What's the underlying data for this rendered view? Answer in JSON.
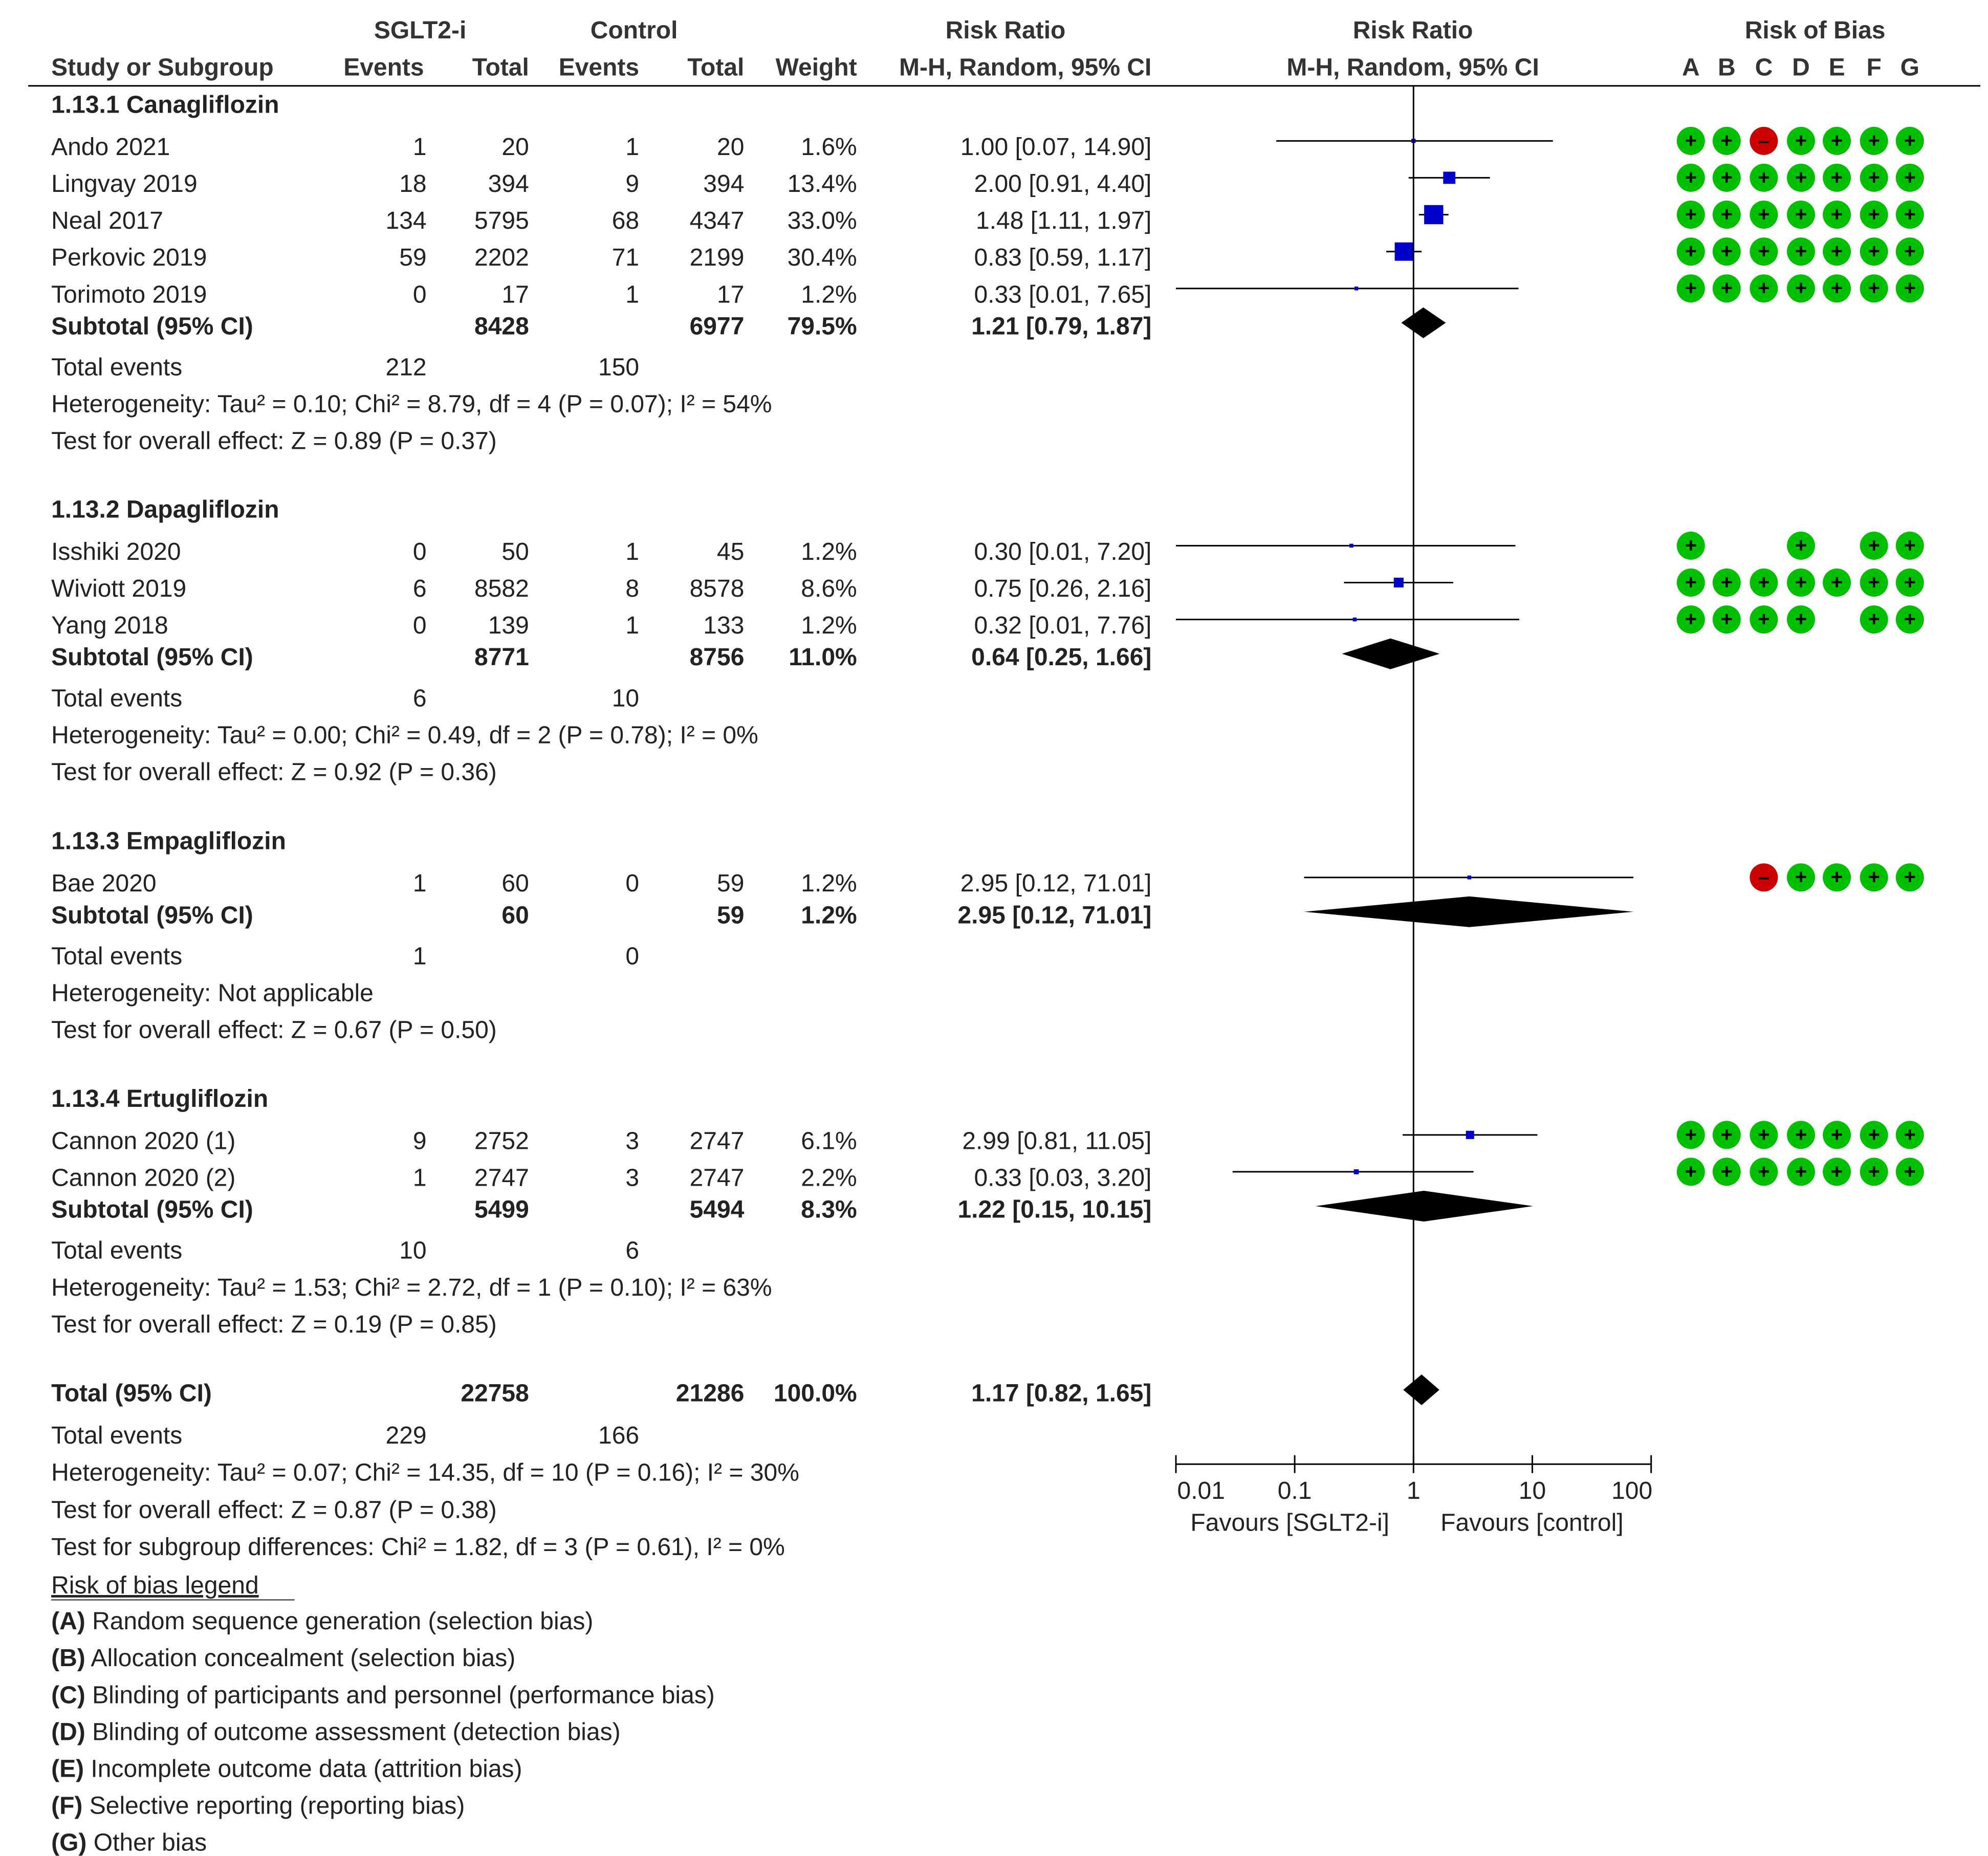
{
  "chart_data": {
    "type": "forest",
    "headers": {
      "group_sglt": "SGLT2-i",
      "group_control": "Control",
      "rr_title": "Risk Ratio",
      "plot_title": "Risk Ratio",
      "rob_title": "Risk of Bias",
      "study": "Study or Subgroup",
      "events": "Events",
      "total": "Total",
      "weight": "Weight",
      "method": "M-H, Random, 95% CI",
      "plot_method": "M-H, Random, 95% CI",
      "rob_letters": [
        "A",
        "B",
        "C",
        "D",
        "E",
        "F",
        "G"
      ]
    },
    "subgroups": [
      {
        "title": "1.13.1 Canagliflozin",
        "studies": [
          {
            "name": "Ando 2021",
            "e1": "1",
            "t1": "20",
            "e2": "1",
            "t2": "20",
            "weight": "1.6%",
            "ci": "1.00 [0.07, 14.90]",
            "rr": 1.0,
            "lo": 0.07,
            "hi": 14.9,
            "w": 1.6,
            "rob": [
              "+",
              "+",
              "-",
              "+",
              "+",
              "+",
              "+"
            ]
          },
          {
            "name": "Lingvay 2019",
            "e1": "18",
            "t1": "394",
            "e2": "9",
            "t2": "394",
            "weight": "13.4%",
            "ci": "2.00 [0.91, 4.40]",
            "rr": 2.0,
            "lo": 0.91,
            "hi": 4.4,
            "w": 13.4,
            "rob": [
              "+",
              "+",
              "+",
              "+",
              "+",
              "+",
              "+"
            ]
          },
          {
            "name": "Neal 2017",
            "e1": "134",
            "t1": "5795",
            "e2": "68",
            "t2": "4347",
            "weight": "33.0%",
            "ci": "1.48 [1.11, 1.97]",
            "rr": 1.48,
            "lo": 1.11,
            "hi": 1.97,
            "w": 33.0,
            "rob": [
              "+",
              "+",
              "+",
              "+",
              "+",
              "+",
              "+"
            ]
          },
          {
            "name": "Perkovic 2019",
            "e1": "59",
            "t1": "2202",
            "e2": "71",
            "t2": "2199",
            "weight": "30.4%",
            "ci": "0.83 [0.59, 1.17]",
            "rr": 0.83,
            "lo": 0.59,
            "hi": 1.17,
            "w": 30.4,
            "rob": [
              "+",
              "+",
              "+",
              "+",
              "+",
              "+",
              "+"
            ]
          },
          {
            "name": "Torimoto 2019",
            "e1": "0",
            "t1": "17",
            "e2": "1",
            "t2": "17",
            "weight": "1.2%",
            "ci": "0.33 [0.01, 7.65]",
            "rr": 0.33,
            "lo": 0.01,
            "hi": 7.65,
            "w": 1.2,
            "rob": [
              "+",
              "+",
              "+",
              "+",
              "+",
              "+",
              "+"
            ]
          }
        ],
        "subtotal": {
          "label": "Subtotal (95% CI)",
          "t1": "8428",
          "t2": "6977",
          "weight": "79.5%",
          "ci": "1.21 [0.79, 1.87]",
          "rr": 1.21,
          "lo": 0.79,
          "hi": 1.87
        },
        "total_events": {
          "label": "Total events",
          "e1": "212",
          "e2": "150"
        },
        "heterogeneity": "Heterogeneity: Tau² = 0.10; Chi² = 8.79, df = 4 (P = 0.07); I² = 54%",
        "overall": "Test for overall effect: Z = 0.89 (P = 0.37)"
      },
      {
        "title": "1.13.2 Dapagliflozin",
        "studies": [
          {
            "name": "Isshiki 2020",
            "e1": "0",
            "t1": "50",
            "e2": "1",
            "t2": "45",
            "weight": "1.2%",
            "ci": "0.30 [0.01, 7.20]",
            "rr": 0.3,
            "lo": 0.01,
            "hi": 7.2,
            "w": 1.2,
            "rob": [
              "+",
              "",
              "",
              "+",
              "",
              "+",
              "+"
            ]
          },
          {
            "name": "Wiviott 2019",
            "e1": "6",
            "t1": "8582",
            "e2": "8",
            "t2": "8578",
            "weight": "8.6%",
            "ci": "0.75 [0.26, 2.16]",
            "rr": 0.75,
            "lo": 0.26,
            "hi": 2.16,
            "w": 8.6,
            "rob": [
              "+",
              "+",
              "+",
              "+",
              "+",
              "+",
              "+"
            ]
          },
          {
            "name": "Yang 2018",
            "e1": "0",
            "t1": "139",
            "e2": "1",
            "t2": "133",
            "weight": "1.2%",
            "ci": "0.32 [0.01, 7.76]",
            "rr": 0.32,
            "lo": 0.01,
            "hi": 7.76,
            "w": 1.2,
            "rob": [
              "+",
              "+",
              "+",
              "+",
              "",
              "+",
              "+"
            ]
          }
        ],
        "subtotal": {
          "label": "Subtotal (95% CI)",
          "t1": "8771",
          "t2": "8756",
          "weight": "11.0%",
          "ci": "0.64 [0.25, 1.66]",
          "rr": 0.64,
          "lo": 0.25,
          "hi": 1.66
        },
        "total_events": {
          "label": "Total events",
          "e1": "6",
          "e2": "10"
        },
        "heterogeneity": "Heterogeneity: Tau² = 0.00; Chi² = 0.49, df = 2 (P = 0.78); I² = 0%",
        "overall": "Test for overall effect: Z = 0.92 (P = 0.36)"
      },
      {
        "title": "1.13.3 Empagliflozin",
        "studies": [
          {
            "name": "Bae 2020",
            "e1": "1",
            "t1": "60",
            "e2": "0",
            "t2": "59",
            "weight": "1.2%",
            "ci": "2.95 [0.12, 71.01]",
            "rr": 2.95,
            "lo": 0.12,
            "hi": 71.01,
            "w": 1.2,
            "rob": [
              "",
              "",
              "-",
              "+",
              "+",
              "+",
              "+"
            ]
          }
        ],
        "subtotal": {
          "label": "Subtotal (95% CI)",
          "t1": "60",
          "t2": "59",
          "weight": "1.2%",
          "ci": "2.95 [0.12, 71.01]",
          "rr": 2.95,
          "lo": 0.12,
          "hi": 71.01
        },
        "total_events": {
          "label": "Total events",
          "e1": "1",
          "e2": "0"
        },
        "heterogeneity": "Heterogeneity: Not applicable",
        "overall": "Test for overall effect: Z = 0.67 (P = 0.50)"
      },
      {
        "title": "1.13.4 Ertugliflozin",
        "studies": [
          {
            "name": "Cannon 2020 (1)",
            "e1": "9",
            "t1": "2752",
            "e2": "3",
            "t2": "2747",
            "weight": "6.1%",
            "ci": "2.99 [0.81, 11.05]",
            "rr": 2.99,
            "lo": 0.81,
            "hi": 11.05,
            "w": 6.1,
            "rob": [
              "+",
              "+",
              "+",
              "+",
              "+",
              "+",
              "+"
            ]
          },
          {
            "name": "Cannon 2020 (2)",
            "e1": "1",
            "t1": "2747",
            "e2": "3",
            "t2": "2747",
            "weight": "2.2%",
            "ci": "0.33 [0.03, 3.20]",
            "rr": 0.33,
            "lo": 0.03,
            "hi": 3.2,
            "w": 2.2,
            "rob": [
              "+",
              "+",
              "+",
              "+",
              "+",
              "+",
              "+"
            ]
          }
        ],
        "subtotal": {
          "label": "Subtotal (95% CI)",
          "t1": "5499",
          "t2": "5494",
          "weight": "8.3%",
          "ci": "1.22 [0.15, 10.15]",
          "rr": 1.22,
          "lo": 0.15,
          "hi": 10.15
        },
        "total_events": {
          "label": "Total events",
          "e1": "10",
          "e2": "6"
        },
        "heterogeneity": "Heterogeneity: Tau² = 1.53; Chi² = 2.72, df = 1 (P = 0.10); I² = 63%",
        "overall": "Test for overall effect: Z = 0.19 (P = 0.85)"
      }
    ],
    "total": {
      "label": "Total (95% CI)",
      "t1": "22758",
      "t2": "21286",
      "weight": "100.0%",
      "ci": "1.17 [0.82, 1.65]",
      "rr": 1.17,
      "lo": 0.82,
      "hi": 1.65
    },
    "total_events": {
      "label": "Total events",
      "e1": "229",
      "e2": "166"
    },
    "heterogeneity": "Heterogeneity: Tau² = 0.07; Chi² = 14.35, df = 10 (P = 0.16); I² = 30%",
    "overall": "Test for overall effect: Z = 0.87 (P = 0.38)",
    "subgroup_diff": "Test for subgroup differences: Chi² = 1.82, df = 3 (P = 0.61), I² = 0%",
    "axis": {
      "scale": "log",
      "ticks": [
        "0.01",
        "0.1",
        "1",
        "10",
        "100"
      ],
      "tick_values": [
        0.01,
        0.1,
        1,
        10,
        100
      ],
      "min": 0.01,
      "max": 100,
      "null_value": 1,
      "favours_left": "Favours [SGLT2-i]",
      "favours_right": "Favours [control]"
    },
    "legend": {
      "title": "Risk of bias legend",
      "items": [
        {
          "key": "(A)",
          "text": " Random sequence generation (selection bias)"
        },
        {
          "key": "(B)",
          "text": " Allocation concealment (selection bias)"
        },
        {
          "key": "(C)",
          "text": " Blinding of participants and personnel (performance bias)"
        },
        {
          "key": "(D)",
          "text": " Blinding of outcome assessment (detection bias)"
        },
        {
          "key": "(E)",
          "text": " Incomplete outcome data (attrition bias)"
        },
        {
          "key": "(F)",
          "text": " Selective reporting (reporting bias)"
        },
        {
          "key": "(G)",
          "text": " Other bias"
        }
      ]
    },
    "colors": {
      "text": "#222222",
      "header": "#333333",
      "square": "#0000cc",
      "diamond": "#000000",
      "low_risk": "#00c000",
      "high_risk": "#cc0000",
      "line": "#000000"
    }
  }
}
